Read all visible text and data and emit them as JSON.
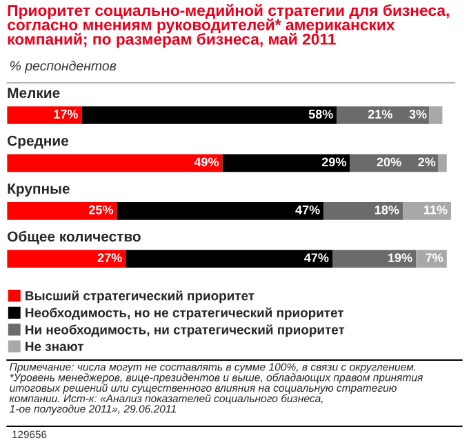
{
  "chart_data": {
    "type": "bar",
    "orientation": "horizontal",
    "stacked": true,
    "title": "Приоритет социально-медийной стратегии для бизнеса,\nсогласно мнениям руководителей* американских\nкомпаний; по размерам бизнеса, май 2011",
    "subtitle": "% респондентов",
    "categories": [
      "Мелкие",
      "Средние",
      "Крупные",
      "Общее количество"
    ],
    "series": [
      {
        "name": "Высший стратегический приоритет",
        "color": "#ff0000",
        "values": [
          17,
          49,
          25,
          27
        ],
        "value_labels": [
          "17%",
          "49%",
          "25%",
          "27%"
        ]
      },
      {
        "name": "Необходимость, но не стратегический приоритет",
        "color": "#000000",
        "values": [
          58,
          29,
          47,
          47
        ],
        "value_labels": [
          "58%",
          "29%",
          "47%",
          "47%"
        ]
      },
      {
        "name": "Ни необходимость, ни стратегический приоритет",
        "color": "#6b6b6b",
        "values": [
          21,
          20,
          18,
          19
        ],
        "value_labels": [
          "21%",
          "20%",
          "18%",
          "19%"
        ]
      },
      {
        "name": "Не знают",
        "color": "#a8a8a8",
        "values": [
          3,
          2,
          11,
          7
        ],
        "value_labels": [
          "3%",
          "2%",
          "11%",
          "7%"
        ]
      }
    ],
    "legend": "bottom left",
    "annotations": [
      "Примечание: числа могут не составлять в сумме 100%, в связи с округлением.\n*Уровень менеджеров, вице-президентов и выше, обладающих правом принятия\nитоговых решений или существенного влияния на социальную стратегию\nкомпании. Ист-к: «Анализ показателей социального бизнеса,\n1-ое полугодие 2011», 29.06.2011",
      "129656"
    ]
  }
}
